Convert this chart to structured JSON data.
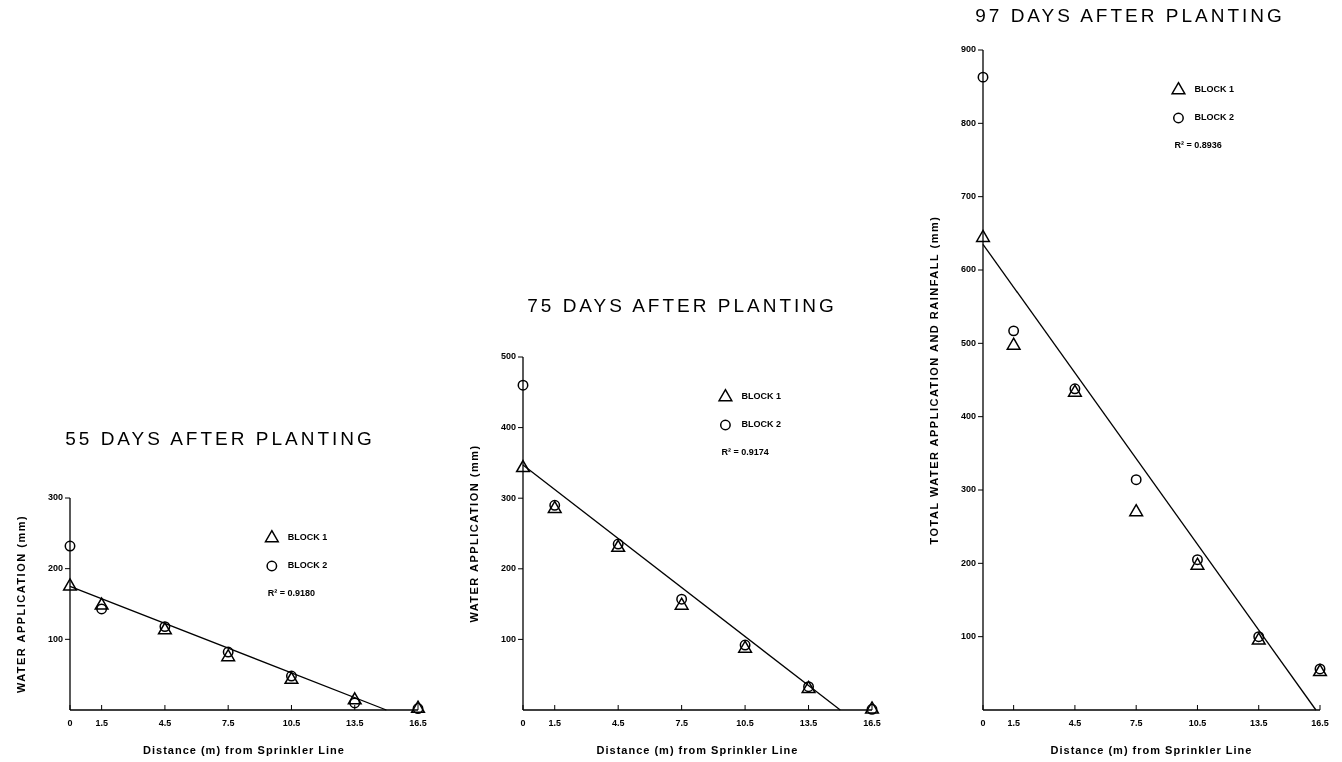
{
  "chart_data": [
    {
      "type": "scatter",
      "title": "55 DAYS AFTER PLANTING",
      "xlabel": "Distance (m) from Sprinkler Line",
      "ylabel": "WATER APPLICATION (mm)",
      "xlim": [
        0,
        16.5
      ],
      "xticks": [
        0,
        1.5,
        4.5,
        7.5,
        10.5,
        13.5,
        16.5
      ],
      "ylim": [
        0,
        300
      ],
      "yticks": [
        100,
        200,
        300
      ],
      "grid": false,
      "legend": "top right",
      "annotations": [
        "R² = 0.9180"
      ],
      "series": [
        {
          "name": "BLOCK 1",
          "color": "#000000",
          "marker": "triangle",
          "x": [
            0,
            1.5,
            4.5,
            7.5,
            10.5,
            13.5,
            16.5
          ],
          "values": [
            175,
            148,
            113,
            75,
            43,
            14,
            2
          ]
        },
        {
          "name": "BLOCK 2",
          "color": "#000000",
          "marker": "circle",
          "x": [
            0,
            1.5,
            4.5,
            7.5,
            10.5,
            13.5,
            16.5
          ],
          "values": [
            232,
            143,
            118,
            82,
            48,
            10,
            2
          ]
        },
        {
          "type": "line",
          "color": "#000000",
          "x": [
            0,
            15
          ],
          "values": [
            175,
            0
          ]
        }
      ]
    },
    {
      "type": "scatter",
      "title": "75 DAYS AFTER PLANTING",
      "xlabel": "Distance (m) from Sprinkler Line",
      "ylabel": "WATER APPLICATION (mm)",
      "xlim": [
        0,
        16.5
      ],
      "xticks": [
        0,
        1.5,
        4.5,
        7.5,
        10.5,
        13.5,
        16.5
      ],
      "ylim": [
        0,
        500
      ],
      "yticks": [
        100,
        200,
        300,
        400,
        500
      ],
      "grid": false,
      "legend": "top right",
      "annotations": [
        "R² = 0.9174"
      ],
      "series": [
        {
          "name": "BLOCK 1",
          "color": "#000000",
          "marker": "triangle",
          "x": [
            0,
            1.5,
            4.5,
            7.5,
            10.5,
            13.5,
            16.5
          ],
          "values": [
            343,
            285,
            230,
            148,
            87,
            30,
            1
          ]
        },
        {
          "name": "BLOCK 2",
          "color": "#000000",
          "marker": "circle",
          "x": [
            0,
            1.5,
            4.5,
            7.5,
            10.5,
            13.5,
            16.5
          ],
          "values": [
            460,
            290,
            235,
            157,
            92,
            33,
            1
          ]
        },
        {
          "type": "line",
          "color": "#000000",
          "x": [
            0,
            15
          ],
          "values": [
            347,
            0
          ]
        }
      ]
    },
    {
      "type": "scatter",
      "title": "97 DAYS AFTER PLANTING",
      "xlabel": "Distance (m) from Sprinkler Line",
      "ylabel": "TOTAL WATER APPLICATION AND RAINFALL (mm)",
      "xlim": [
        0,
        16.5
      ],
      "xticks": [
        0,
        1.5,
        4.5,
        7.5,
        10.5,
        13.5,
        16.5
      ],
      "ylim": [
        0,
        900
      ],
      "yticks": [
        100,
        200,
        300,
        400,
        500,
        600,
        700,
        800,
        900
      ],
      "grid": false,
      "legend": "top right",
      "annotations": [
        "R² = 0.8936"
      ],
      "series": [
        {
          "name": "BLOCK 1",
          "color": "#000000",
          "marker": "triangle",
          "x": [
            0,
            1.5,
            4.5,
            7.5,
            10.5,
            13.5,
            16.5
          ],
          "values": [
            644,
            497,
            433,
            270,
            197,
            95,
            52
          ]
        },
        {
          "name": "BLOCK 2",
          "color": "#000000",
          "marker": "circle",
          "x": [
            0,
            1.5,
            4.5,
            7.5,
            10.5,
            13.5,
            16.5
          ],
          "values": [
            863,
            517,
            438,
            314,
            205,
            100,
            56
          ]
        },
        {
          "type": "line",
          "color": "#000000",
          "x": [
            0,
            16.3
          ],
          "values": [
            635,
            0
          ]
        }
      ]
    }
  ]
}
